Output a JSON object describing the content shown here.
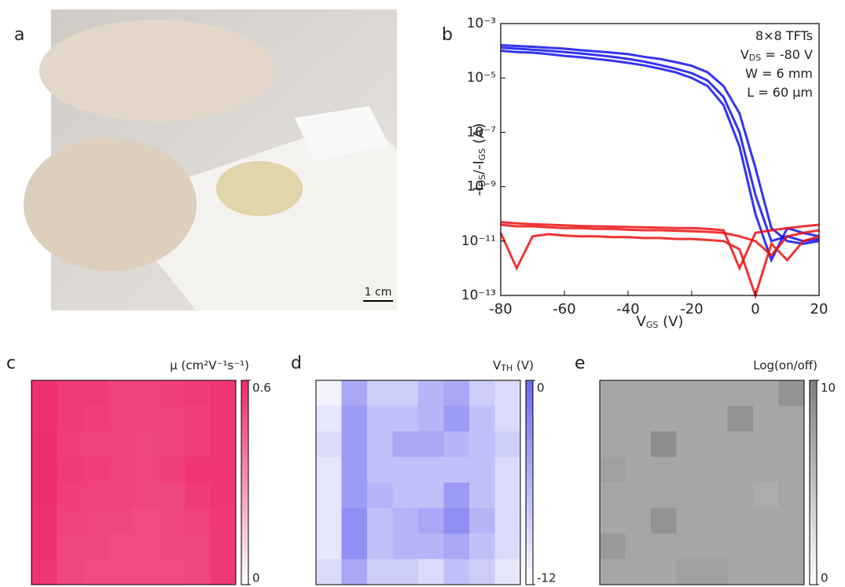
{
  "photo": {
    "panel_label": "a",
    "scale_label": "1 cm"
  },
  "chart_data": [
    {
      "type": "line",
      "panel_label": "b",
      "x_label": [
        "V",
        "GS",
        " (V)"
      ],
      "y_label": [
        "-I",
        "DS",
        "/-I",
        "GS",
        " (A)"
      ],
      "annotations": [
        [
          "8×8 TFTs"
        ],
        [
          "V",
          "DS",
          " = -80 V"
        ],
        [
          "W = 6 mm"
        ],
        [
          "L = 60 μm"
        ]
      ],
      "log_y": true,
      "xlim": [
        -80,
        20
      ],
      "xticks": [
        -80,
        -60,
        -40,
        -20,
        0,
        20
      ],
      "ylim": [
        1e-13,
        0.001
      ],
      "yticks": [
        {
          "value": 1e-13,
          "label": "10⁻¹³"
        },
        {
          "value": 1e-11,
          "label": "10⁻¹¹"
        },
        {
          "value": 1e-09,
          "label": "10⁻⁹"
        },
        {
          "value": 1e-07,
          "label": "10⁻⁷"
        },
        {
          "value": 1e-05,
          "label": "10⁻⁵"
        },
        {
          "value": 0.001,
          "label": "10⁻³"
        }
      ],
      "x": [
        -80,
        -75,
        -70,
        -65,
        -60,
        -55,
        -50,
        -45,
        -40,
        -35,
        -30,
        -25,
        -20,
        -15,
        -10,
        -5,
        0,
        5,
        10,
        15,
        20
      ],
      "series": [
        {
          "color": "#1010ee",
          "values": [
            0.00013,
            0.00012,
            0.00011,
            0.0001,
            9e-05,
            8e-05,
            7e-05,
            6e-05,
            5e-05,
            4e-05,
            3e-05,
            2.2e-05,
            1.5e-05,
            8e-06,
            2e-06,
            1e-07,
            5e-10,
            1e-11,
            1.5e-11,
            1e-11,
            1.2e-11
          ]
        },
        {
          "color": "#1010ee",
          "values": [
            0.0001,
            9e-05,
            8.5e-05,
            7.5e-05,
            6.5e-05,
            5.8e-05,
            5e-05,
            4.3e-05,
            3.6e-05,
            2.9e-05,
            2.2e-05,
            1.6e-05,
            1e-05,
            5e-06,
            1e-06,
            3e-08,
            1e-10,
            2e-12,
            3e-11,
            2e-11,
            1.5e-11
          ]
        },
        {
          "color": "#1010ee",
          "values": [
            0.00016,
            0.00015,
            0.00014,
            0.00013,
            0.00012,
            0.000105,
            9.5e-05,
            8.5e-05,
            7.5e-05,
            6e-05,
            5e-05,
            3.8e-05,
            2.8e-05,
            1.6e-05,
            5e-06,
            5e-07,
            5e-09,
            3e-11,
            1e-11,
            8e-12,
            1e-11
          ]
        },
        {
          "color": "#ee1010",
          "values": [
            4e-11,
            3.5e-11,
            3.5e-11,
            3.2e-11,
            3e-11,
            3e-11,
            2.8e-11,
            2.8e-11,
            2.6e-11,
            2.5e-11,
            2.5e-11,
            2.4e-11,
            2.3e-11,
            2.2e-11,
            2e-11,
            1.5e-11,
            1e-11,
            3e-12,
            1.5e-11,
            2e-11,
            2.5e-11
          ]
        },
        {
          "color": "#ee1010",
          "values": [
            2e-11,
            1e-12,
            1.5e-11,
            1.8e-11,
            1.6e-11,
            1.5e-11,
            1.5e-11,
            1.4e-11,
            1.4e-11,
            1.3e-11,
            1.3e-11,
            1.2e-11,
            1.2e-11,
            1.1e-11,
            1e-11,
            5e-12,
            1e-13,
            8e-12,
            2e-12,
            1e-11,
            1.5e-11
          ]
        },
        {
          "color": "#ee1010",
          "values": [
            5e-11,
            4.5e-11,
            4.2e-11,
            4e-11,
            3.8e-11,
            3.6e-11,
            3.5e-11,
            3.4e-11,
            3.3e-11,
            3.2e-11,
            3.1e-11,
            3e-11,
            3e-11,
            2.8e-11,
            2.5e-11,
            1e-12,
            2e-11,
            2.5e-11,
            3e-11,
            3.5e-11,
            4e-11
          ]
        }
      ]
    },
    {
      "type": "heatmap",
      "panel_label": "c",
      "title": [
        "μ (cm²V⁻¹s⁻¹)"
      ],
      "color": "#ee2a6c",
      "clim": [
        0,
        0.6
      ],
      "cticks": [
        0,
        0.6
      ],
      "values": [
        [
          0.58,
          0.55,
          0.55,
          0.53,
          0.53,
          0.54,
          0.55,
          0.57
        ],
        [
          0.58,
          0.55,
          0.54,
          0.53,
          0.53,
          0.53,
          0.54,
          0.57
        ],
        [
          0.59,
          0.54,
          0.53,
          0.53,
          0.52,
          0.53,
          0.54,
          0.57
        ],
        [
          0.59,
          0.55,
          0.54,
          0.53,
          0.52,
          0.54,
          0.57,
          0.57
        ],
        [
          0.59,
          0.54,
          0.53,
          0.53,
          0.52,
          0.52,
          0.55,
          0.57
        ],
        [
          0.58,
          0.53,
          0.52,
          0.52,
          0.51,
          0.52,
          0.53,
          0.56
        ],
        [
          0.58,
          0.52,
          0.52,
          0.51,
          0.51,
          0.52,
          0.52,
          0.56
        ],
        [
          0.57,
          0.52,
          0.51,
          0.51,
          0.51,
          0.51,
          0.52,
          0.56
        ]
      ]
    },
    {
      "type": "heatmap",
      "panel_label": "d",
      "title": [
        "V",
        "TH",
        " (V)"
      ],
      "color": "#6a6af0",
      "clim": [
        -12,
        0
      ],
      "cticks": [
        -12,
        0
      ],
      "values": [
        [
          -11,
          -5,
          -8,
          -8,
          -6,
          -5,
          -8,
          -9
        ],
        [
          -10,
          -4,
          -7,
          -7,
          -6,
          -4,
          -7,
          -9
        ],
        [
          -9,
          -4,
          -7,
          -5,
          -5,
          -6,
          -7,
          -8
        ],
        [
          -10,
          -4,
          -7,
          -7,
          -7,
          -7,
          -7,
          -9
        ],
        [
          -10,
          -4,
          -6,
          -7,
          -7,
          -4,
          -7,
          -9
        ],
        [
          -10,
          -3,
          -7,
          -6,
          -5,
          -3,
          -6,
          -9
        ],
        [
          -10,
          -3,
          -7,
          -6,
          -6,
          -5,
          -7,
          -9
        ],
        [
          -9,
          -5,
          -8,
          -8,
          -9,
          -7,
          -8,
          -10
        ]
      ]
    },
    {
      "type": "heatmap",
      "panel_label": "e",
      "title": [
        "Log(on/off)"
      ],
      "color": "#808080",
      "clim": [
        0,
        10
      ],
      "cticks": [
        0,
        10
      ],
      "values": [
        [
          7,
          7,
          7,
          7,
          7,
          7,
          7,
          8.5
        ],
        [
          7,
          7,
          7,
          7,
          7,
          8.5,
          7,
          7
        ],
        [
          7,
          7,
          9,
          7,
          7,
          7,
          7,
          7
        ],
        [
          7.5,
          7,
          7,
          7,
          7,
          7,
          7,
          7
        ],
        [
          7,
          7,
          7,
          7,
          7,
          7,
          6.5,
          7
        ],
        [
          7,
          7,
          8.5,
          7,
          7,
          7,
          7,
          7
        ],
        [
          8,
          7,
          7,
          7,
          7,
          7,
          7,
          7
        ],
        [
          7,
          7,
          7,
          7.5,
          7.5,
          7,
          7,
          7
        ]
      ]
    }
  ]
}
